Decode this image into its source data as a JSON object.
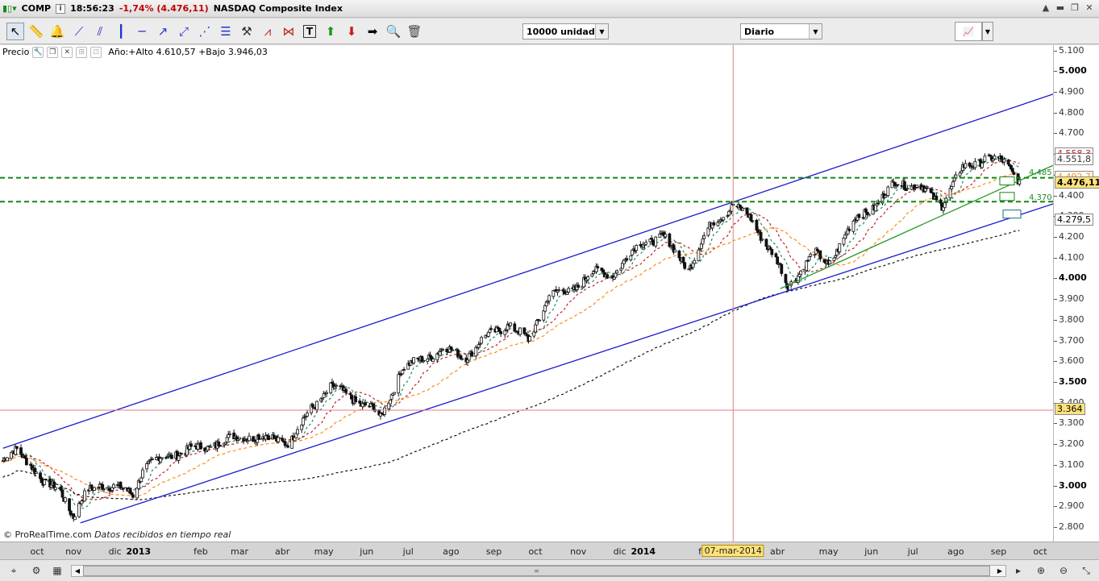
{
  "titlebar": {
    "symbol": "COMP",
    "time": "18:56:23",
    "change": "-1,74% (4.476,11)",
    "name": "NASDAQ Composite Index"
  },
  "toolbar": {
    "quantity": "10000 unidades",
    "period": "Diario"
  },
  "legend": {
    "label": "Precio",
    "year_stats": "Año:+Alto 4.610,57 +Bajo 3.946,03"
  },
  "y_axis": {
    "ticks": [
      "5.100",
      "5.000",
      "4.900",
      "4.800",
      "4.700",
      "4.600",
      "4.500",
      "4.400",
      "4.300",
      "4.200",
      "4.100",
      "4.000",
      "3.900",
      "3.800",
      "3.700",
      "3.600",
      "3.500",
      "3.400",
      "3.300",
      "3.200",
      "3.100",
      "3.000",
      "2.900",
      "2.800"
    ],
    "price_tags": {
      "last": "4.476,11",
      "hline_low": "3.364",
      "ma200": "4.279,5",
      "ma20": "4.551,8",
      "ma50": "4.492,7",
      "high_tag": "4.558,3"
    }
  },
  "levels": {
    "resistance": "4.485",
    "support": "4.370"
  },
  "x_axis": {
    "labels": [
      {
        "text": "oct"
      },
      {
        "text": "nov"
      },
      {
        "text": "dic"
      },
      {
        "text": "2013",
        "year": true
      },
      {
        "text": "feb"
      },
      {
        "text": "mar"
      },
      {
        "text": "abr"
      },
      {
        "text": "may"
      },
      {
        "text": "jun"
      },
      {
        "text": "jul"
      },
      {
        "text": "ago"
      },
      {
        "text": "sep"
      },
      {
        "text": "oct"
      },
      {
        "text": "nov"
      },
      {
        "text": "dic"
      },
      {
        "text": "2014",
        "year": true
      },
      {
        "text": "feb"
      },
      {
        "text": "07-mar-2014",
        "cursor": true
      },
      {
        "text": "abr"
      },
      {
        "text": "may"
      },
      {
        "text": "jun"
      },
      {
        "text": "jul"
      },
      {
        "text": "ago"
      },
      {
        "text": "sep"
      },
      {
        "text": "oct"
      }
    ]
  },
  "credit": {
    "brand": "© ProRealTime.com",
    "note": "Datos recibidos en tiempo real"
  },
  "colors": {
    "channel": "#1a1acc",
    "support_level": "#118811",
    "trend_green": "#2a9a2a",
    "ma_short": "#1e8a6a",
    "ma_mid": "#c02020",
    "ma_orange": "#ff8c1a",
    "ma_long": "#111111",
    "hline": "#e08080",
    "candle_up": "#ffffff",
    "candle_down": "#111111"
  },
  "chart_data": {
    "type": "candlestick",
    "title": "NASDAQ Composite Index",
    "y_range": [
      2750,
      5150
    ],
    "x_range": [
      "2012-09-25",
      "2014-10-20"
    ],
    "close_path": [
      [
        "2012-09-25",
        3120
      ],
      [
        "2012-10-05",
        3170
      ],
      [
        "2012-10-15",
        3110
      ],
      [
        "2012-10-25",
        3000
      ],
      [
        "2012-11-05",
        2990
      ],
      [
        "2012-11-15",
        2850
      ],
      [
        "2012-11-25",
        2970
      ],
      [
        "2012-12-05",
        3010
      ],
      [
        "2012-12-15",
        2990
      ],
      [
        "2012-12-28",
        2960
      ],
      [
        "2013-01-05",
        3090
      ],
      [
        "2013-01-20",
        3140
      ],
      [
        "2013-02-05",
        3170
      ],
      [
        "2013-02-20",
        3190
      ],
      [
        "2013-03-05",
        3220
      ],
      [
        "2013-03-20",
        3240
      ],
      [
        "2013-04-05",
        3230
      ],
      [
        "2013-04-20",
        3210
      ],
      [
        "2013-05-05",
        3360
      ],
      [
        "2013-05-20",
        3480
      ],
      [
        "2013-06-05",
        3420
      ],
      [
        "2013-06-20",
        3370
      ],
      [
        "2013-06-25",
        3320
      ],
      [
        "2013-07-10",
        3560
      ],
      [
        "2013-07-25",
        3610
      ],
      [
        "2013-08-10",
        3660
      ],
      [
        "2013-08-25",
        3620
      ],
      [
        "2013-09-10",
        3720
      ],
      [
        "2013-09-25",
        3780
      ],
      [
        "2013-10-10",
        3700
      ],
      [
        "2013-10-25",
        3920
      ],
      [
        "2013-11-10",
        3940
      ],
      [
        "2013-11-25",
        4030
      ],
      [
        "2013-12-10",
        4020
      ],
      [
        "2013-12-30",
        4170
      ],
      [
        "2014-01-15",
        4200
      ],
      [
        "2014-02-03",
        4050
      ],
      [
        "2014-02-20",
        4270
      ],
      [
        "2014-03-07",
        4350
      ],
      [
        "2014-03-20",
        4290
      ],
      [
        "2014-04-10",
        4050
      ],
      [
        "2014-04-15",
        3960
      ],
      [
        "2014-05-05",
        4120
      ],
      [
        "2014-05-15",
        4070
      ],
      [
        "2014-06-05",
        4300
      ],
      [
        "2014-06-20",
        4360
      ],
      [
        "2014-07-03",
        4470
      ],
      [
        "2014-07-20",
        4440
      ],
      [
        "2014-08-05",
        4360
      ],
      [
        "2014-08-20",
        4530
      ],
      [
        "2014-09-05",
        4580
      ],
      [
        "2014-09-20",
        4560
      ],
      [
        "2014-09-30",
        4476
      ]
    ],
    "moving_averages": [
      {
        "name": "MA short",
        "color": "#1e8a6a"
      },
      {
        "name": "MA mid",
        "color": "#c02020"
      },
      {
        "name": "MA orange",
        "color": "#ff8c1a"
      },
      {
        "name": "MA long",
        "color": "#111111"
      }
    ],
    "horizontal_levels": [
      4485,
      4370,
      3364
    ],
    "channel_upper": [
      [
        "2012-09-25",
        3180
      ],
      [
        "2014-10-20",
        4900
      ]
    ],
    "channel_lower": [
      [
        "2012-11-20",
        2820
      ],
      [
        "2014-10-20",
        4370
      ]
    ],
    "uptrend_green": [
      [
        "2014-04-10",
        3950
      ],
      [
        "2014-10-20",
        4560
      ]
    ],
    "cursor_date": "2014-03-07",
    "last_price": 4476.11,
    "year_high": 4610.57,
    "year_low": 3946.03
  }
}
